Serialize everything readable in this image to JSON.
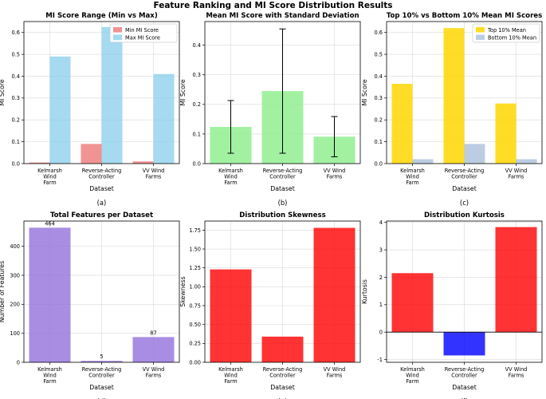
{
  "figure_title": "Feature Ranking and MI Score Distribution Results",
  "colors": {
    "min": "#f08080",
    "max": "#87ceeb",
    "std": "#90ee90",
    "top": "#ffd700",
    "bottom": "#b0c4de",
    "features": "#9370db",
    "pos": "#ff0000",
    "neg": "#0000ff",
    "grid": "#d9d9d9",
    "err": "#000000"
  },
  "chart_data": [
    {
      "id": "a",
      "type": "bar",
      "title": "MI Score Range (Min vs Max)",
      "panel_label": "(a)",
      "xlabel": "Dataset",
      "ylabel": "MI Score",
      "categories": [
        [
          "Kelmarsh",
          "Wind",
          "Farm"
        ],
        [
          "Reverse-Acting",
          "Controller"
        ],
        [
          "VV Wind",
          "Farms"
        ]
      ],
      "ylim": [
        0,
        0.65
      ],
      "yticks": [
        0,
        0.1,
        0.2,
        0.3,
        0.4,
        0.5,
        0.6
      ],
      "tick_decimals": 1,
      "legend": "top-right",
      "series": [
        {
          "name": "Min MI Score",
          "values": [
            0.005,
            0.09,
            0.01
          ],
          "color_key": "min",
          "alpha": 0.85
        },
        {
          "name": "Max MI Score",
          "values": [
            0.49,
            0.625,
            0.41
          ],
          "color_key": "max",
          "alpha": 0.75
        }
      ]
    },
    {
      "id": "b",
      "type": "bar",
      "title": "Mean MI Score with Standard Deviation",
      "panel_label": "(b)",
      "xlabel": "Dataset",
      "ylabel": "MI Score",
      "categories": [
        [
          "Kelmarsh",
          "Wind",
          "Farm"
        ],
        [
          "Reverse-Acting",
          "Controller"
        ],
        [
          "VV Wind",
          "Farms"
        ]
      ],
      "ylim": [
        0,
        0.48
      ],
      "yticks": [
        0,
        0.1,
        0.2,
        0.3,
        0.4
      ],
      "tick_decimals": 1,
      "series": [
        {
          "name": "Mean MI Score",
          "values": [
            0.124,
            0.245,
            0.091
          ],
          "errors": [
            0.089,
            0.21,
            0.068
          ],
          "color_key": "std",
          "alpha": 0.85
        }
      ]
    },
    {
      "id": "c",
      "type": "bar",
      "title": "Top 10% vs Bottom 10% Mean MI Scores",
      "panel_label": "(c)",
      "xlabel": "Dataset",
      "ylabel": "MI Score",
      "categories": [
        [
          "Kelmarsh",
          "Wind",
          "Farm"
        ],
        [
          "Reverse-Acting",
          "Controller"
        ],
        [
          "VV Wind",
          "Farms"
        ]
      ],
      "ylim": [
        0,
        0.65
      ],
      "yticks": [
        0,
        0.1,
        0.2,
        0.3,
        0.4,
        0.5,
        0.6
      ],
      "tick_decimals": 1,
      "legend": "top-right",
      "series": [
        {
          "name": "Top 10% Mean",
          "values": [
            0.365,
            0.62,
            0.275
          ],
          "color_key": "top",
          "alpha": 0.85
        },
        {
          "name": "Bottom 10% Mean",
          "values": [
            0.02,
            0.09,
            0.02
          ],
          "color_key": "bottom",
          "alpha": 0.85
        }
      ]
    },
    {
      "id": "d",
      "type": "bar",
      "title": "Total Features per Dataset",
      "panel_label": "(d)",
      "xlabel": "Dataset",
      "ylabel": "Number of Features",
      "categories": [
        [
          "Kelmarsh",
          "Wind",
          "Farm"
        ],
        [
          "Reverse-Acting",
          "Controller"
        ],
        [
          "VV Wind",
          "Farms"
        ]
      ],
      "ylim": [
        0,
        487
      ],
      "yticks": [
        0,
        100,
        200,
        300,
        400
      ],
      "tick_decimals": 0,
      "series": [
        {
          "name": "Total Features",
          "values": [
            464,
            5,
            87
          ],
          "labels": [
            "464",
            "5",
            "87"
          ],
          "color_key": "features",
          "alpha": 0.8
        }
      ]
    },
    {
      "id": "e",
      "type": "bar",
      "title": "Distribution Skewness",
      "panel_label": "(e)",
      "xlabel": "Dataset",
      "ylabel": "Skewness",
      "categories": [
        [
          "Kelmarsh",
          "Wind",
          "Farm"
        ],
        [
          "Reverse-Acting",
          "Controller"
        ],
        [
          "VV Wind",
          "Farms"
        ]
      ],
      "ylim": [
        0,
        1.87
      ],
      "yticks": [
        0,
        0.25,
        0.5,
        0.75,
        1.0,
        1.25,
        1.5,
        1.75
      ],
      "tick_decimals": 2,
      "series": [
        {
          "name": "Skewness",
          "values": [
            1.23,
            0.34,
            1.78
          ],
          "color_key": "pos",
          "neg_color_key": "neg",
          "alpha": 0.8
        }
      ]
    },
    {
      "id": "f",
      "type": "bar",
      "title": "Distribution Kurtosis",
      "panel_label": "(f)",
      "xlabel": "Dataset",
      "ylabel": "Kurtosis",
      "categories": [
        [
          "Kelmarsh",
          "Wind",
          "Farm"
        ],
        [
          "Reverse-Acting",
          "Controller"
        ],
        [
          "VV Wind",
          "Farms"
        ]
      ],
      "ylim": [
        -1.1,
        4.05
      ],
      "yticks": [
        -1,
        0,
        1,
        2,
        3,
        4
      ],
      "tick_decimals": 0,
      "zero_line": true,
      "series": [
        {
          "name": "Kurtosis",
          "values": [
            2.15,
            -0.85,
            3.83
          ],
          "color_key": "pos",
          "neg_color_key": "neg",
          "alpha": 0.8
        }
      ]
    }
  ]
}
